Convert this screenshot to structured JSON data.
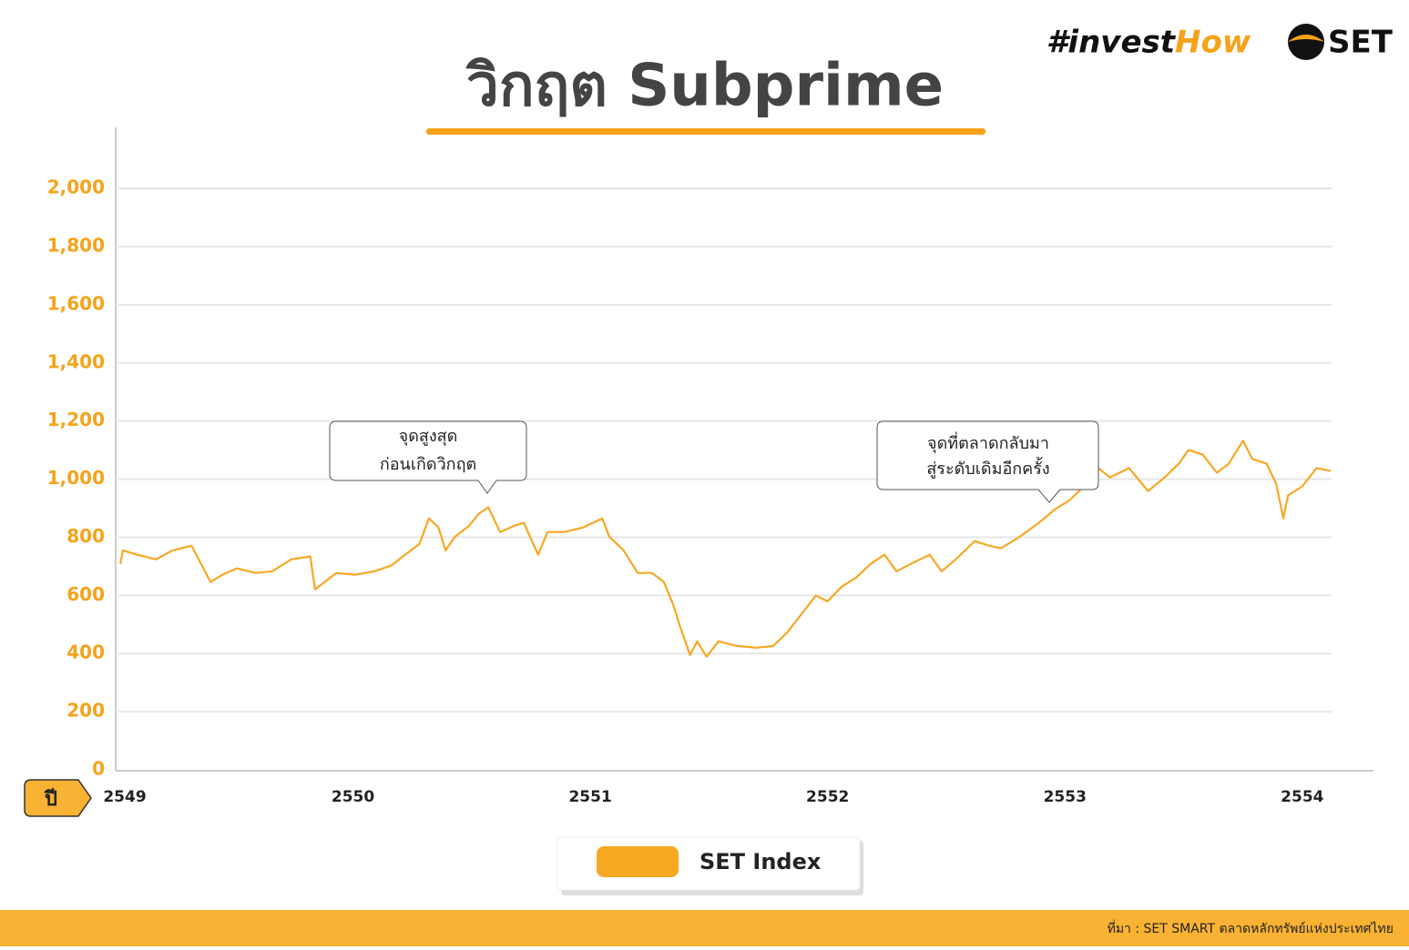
{
  "header": {
    "title": "วิกฤต Subprime",
    "logo_left": "#invest",
    "logo_right": "How",
    "brand": "SET"
  },
  "chart_data": {
    "type": "line",
    "x_axis_label": "ปี",
    "annotations": [
      "จุดสูงสุด",
      "ก่อนเกิดวิกฤต",
      "จุดที่ตลาดกลับมา",
      "สู่ระดับเดิมอีกครั้ง"
    ],
    "xlim": [
      2549,
      2554.3
    ],
    "xticks": [
      2549,
      2550,
      2551,
      2552,
      2553,
      2554
    ],
    "ylim": [
      0,
      2210
    ],
    "yticks": [
      0,
      200,
      400,
      600,
      800,
      {
        "value": 1000,
        "label": "1,000"
      },
      {
        "value": 1200,
        "label": "1,200"
      },
      {
        "value": 1400,
        "label": "1,400"
      },
      {
        "value": 1600,
        "label": "1,600"
      },
      {
        "value": 1800,
        "label": "1,800"
      },
      {
        "value": 2000,
        "label": "2,000"
      }
    ],
    "grid": true,
    "series": [
      {
        "name": "SET Index",
        "color": "#f7a823",
        "x": [
          2549.02,
          2549.03,
          2549.09,
          2549.17,
          2549.24,
          2549.32,
          2549.36,
          2549.4,
          2549.45,
          2549.51,
          2549.59,
          2549.66,
          2549.74,
          2549.82,
          2549.84,
          2549.88,
          2549.93,
          2550.01,
          2550.09,
          2550.16,
          2550.22,
          2550.28,
          2550.32,
          2550.36,
          2550.39,
          2550.43,
          2550.49,
          2550.53,
          2550.57,
          2550.62,
          2550.68,
          2550.72,
          2550.78,
          2550.82,
          2550.89,
          2550.97,
          2551.05,
          2551.08,
          2551.14,
          2551.2,
          2551.26,
          2551.31,
          2551.35,
          2551.38,
          2551.42,
          2551.45,
          2551.49,
          2551.54,
          2551.62,
          2551.7,
          2551.77,
          2551.83,
          2551.89,
          2551.95,
          2552.0,
          2552.06,
          2552.12,
          2552.18,
          2552.24,
          2552.29,
          2552.35,
          2552.43,
          2552.48,
          2552.54,
          2552.62,
          2552.68,
          2552.73,
          2552.81,
          2552.89,
          2552.96,
          2553.02,
          2553.08,
          2553.14,
          2553.19,
          2553.27,
          2553.35,
          2553.42,
          2553.48,
          2553.52,
          2553.58,
          2553.64,
          2553.69,
          2553.75,
          2553.79,
          2553.85,
          2553.89,
          2553.92,
          2553.94,
          2554.0,
          2554.06,
          2554.12
        ],
        "values": [
          708,
          755,
          740,
          724,
          755,
          771,
          708,
          646,
          671,
          693,
          677,
          683,
          724,
          734,
          621,
          646,
          677,
          671,
          683,
          702,
          740,
          777,
          865,
          834,
          755,
          802,
          840,
          881,
          903,
          818,
          840,
          850,
          740,
          818,
          818,
          834,
          865,
          802,
          755,
          677,
          677,
          646,
          567,
          489,
          395,
          442,
          389,
          442,
          426,
          420,
          426,
          473,
          536,
          599,
          580,
          630,
          661,
          708,
          740,
          683,
          708,
          740,
          683,
          724,
          787,
          771,
          762,
          802,
          850,
          897,
          928,
          975,
          1038,
          1006,
          1038,
          959,
          1006,
          1053,
          1100,
          1085,
          1022,
          1053,
          1132,
          1069,
          1053,
          984,
          865,
          944,
          975,
          1038,
          1028
        ]
      }
    ]
  },
  "footer": {
    "source": "ที่มา : SET SMART ตลาดหลักทรัพย์แห่งประเทศไทย"
  }
}
